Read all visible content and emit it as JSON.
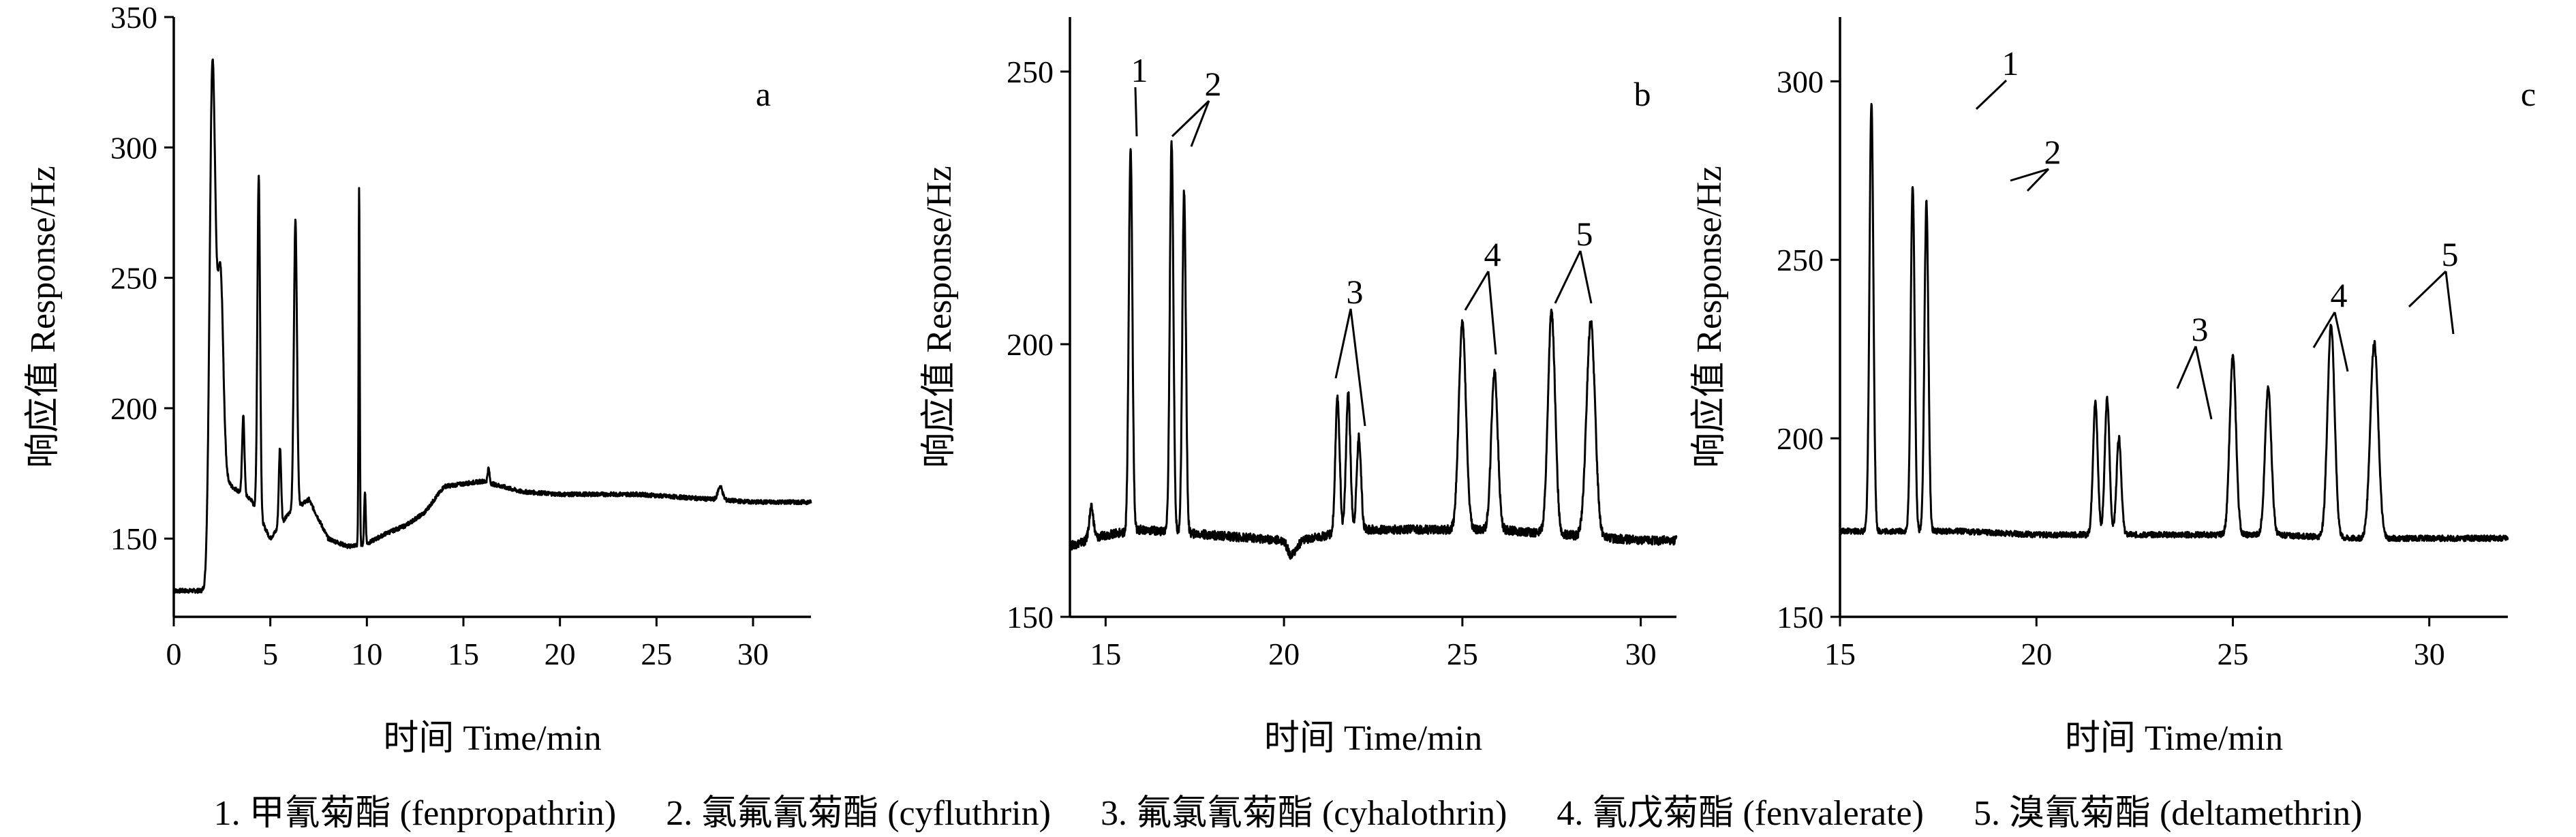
{
  "chart_data": [
    {
      "type": "line",
      "panel": "a",
      "xlabel": "时间 Time/min",
      "ylabel": "响应值  Response/Hz",
      "xlim": [
        0,
        33
      ],
      "ylim": [
        120,
        350
      ],
      "xticks": [
        0,
        5,
        10,
        15,
        20,
        25,
        30
      ],
      "yticks": [
        150,
        200,
        250,
        300,
        350
      ],
      "baseline": [
        [
          0,
          130
        ],
        [
          1.5,
          130
        ],
        [
          1.8,
          127
        ],
        [
          2.5,
          175
        ],
        [
          3,
          170
        ],
        [
          4,
          165
        ],
        [
          5,
          150
        ],
        [
          6,
          160
        ],
        [
          7,
          165
        ],
        [
          8,
          150
        ],
        [
          9,
          147
        ],
        [
          10,
          148
        ],
        [
          11,
          152
        ],
        [
          12,
          155
        ],
        [
          13,
          160
        ],
        [
          14,
          170
        ],
        [
          15,
          171
        ],
        [
          16,
          172
        ],
        [
          18,
          168
        ],
        [
          20,
          167
        ],
        [
          22,
          167
        ],
        [
          24,
          167
        ],
        [
          26,
          166
        ],
        [
          28,
          165
        ],
        [
          30,
          164
        ],
        [
          33,
          164
        ]
      ],
      "peaks": [
        {
          "x": 2.0,
          "y": 331,
          "w": 0.15
        },
        {
          "x": 2.4,
          "y": 250,
          "w": 0.15
        },
        {
          "x": 3.6,
          "y": 197,
          "w": 0.06
        },
        {
          "x": 4.4,
          "y": 289,
          "w": 0.07
        },
        {
          "x": 5.5,
          "y": 185,
          "w": 0.06
        },
        {
          "x": 6.3,
          "y": 272,
          "w": 0.08
        },
        {
          "x": 9.6,
          "y": 285,
          "w": 0.03
        },
        {
          "x": 9.9,
          "y": 168,
          "w": 0.04
        },
        {
          "x": 16.3,
          "y": 177,
          "w": 0.05
        },
        {
          "x": 28.3,
          "y": 170,
          "w": 0.12
        }
      ],
      "peak_labels": []
    },
    {
      "type": "line",
      "panel": "b",
      "xlabel": "时间 Time/min",
      "ylabel": "响应值  Response/Hz",
      "xlim": [
        14,
        31
      ],
      "ylim": [
        150,
        260
      ],
      "xticks": [
        15,
        20,
        25,
        30
      ],
      "yticks": [
        150,
        200,
        250
      ],
      "baseline": [
        [
          14,
          163
        ],
        [
          15,
          165
        ],
        [
          16,
          166
        ],
        [
          18,
          165
        ],
        [
          20,
          164
        ],
        [
          20.2,
          161
        ],
        [
          20.5,
          164
        ],
        [
          22,
          166
        ],
        [
          24,
          166
        ],
        [
          26,
          166
        ],
        [
          28,
          165
        ],
        [
          30,
          164
        ],
        [
          31,
          164
        ]
      ],
      "peaks": [
        {
          "x": 14.6,
          "y": 170,
          "w": 0.06
        },
        {
          "x": 15.7,
          "y": 236,
          "w": 0.05
        },
        {
          "x": 16.85,
          "y": 237,
          "w": 0.05
        },
        {
          "x": 17.2,
          "y": 228,
          "w": 0.05
        },
        {
          "x": 21.5,
          "y": 190,
          "w": 0.06
        },
        {
          "x": 21.8,
          "y": 191,
          "w": 0.06
        },
        {
          "x": 22.1,
          "y": 183,
          "w": 0.06
        },
        {
          "x": 25.0,
          "y": 204,
          "w": 0.1
        },
        {
          "x": 25.9,
          "y": 195,
          "w": 0.09
        },
        {
          "x": 27.5,
          "y": 206,
          "w": 0.1
        },
        {
          "x": 28.6,
          "y": 204,
          "w": 0.12
        }
      ],
      "peak_labels": [
        "1",
        "2",
        "3",
        "4",
        "5"
      ]
    },
    {
      "type": "line",
      "panel": "c",
      "xlabel": "时间 Time/min",
      "ylabel": "响应值  Response/Hz",
      "xlim": [
        15,
        32
      ],
      "ylim": [
        150,
        318
      ],
      "xticks": [
        15,
        20,
        25,
        30
      ],
      "yticks": [
        150,
        200,
        250,
        300
      ],
      "baseline": [
        [
          15,
          174
        ],
        [
          16,
          174
        ],
        [
          18,
          174
        ],
        [
          20,
          173
        ],
        [
          22,
          173
        ],
        [
          24,
          173
        ],
        [
          26,
          173
        ],
        [
          28,
          172
        ],
        [
          30,
          172
        ],
        [
          32,
          172
        ]
      ],
      "peaks": [
        {
          "x": 15.8,
          "y": 294,
          "w": 0.05
        },
        {
          "x": 16.85,
          "y": 271,
          "w": 0.05
        },
        {
          "x": 17.2,
          "y": 266,
          "w": 0.05
        },
        {
          "x": 21.5,
          "y": 210,
          "w": 0.06
        },
        {
          "x": 21.8,
          "y": 211,
          "w": 0.06
        },
        {
          "x": 22.1,
          "y": 200,
          "w": 0.06
        },
        {
          "x": 25.0,
          "y": 223,
          "w": 0.08
        },
        {
          "x": 25.9,
          "y": 214,
          "w": 0.08
        },
        {
          "x": 27.5,
          "y": 232,
          "w": 0.09
        },
        {
          "x": 28.6,
          "y": 227,
          "w": 0.1
        }
      ],
      "peak_labels": [
        "1",
        "2",
        "3",
        "4",
        "5"
      ]
    }
  ],
  "legend": [
    "1. 甲氰菊酯 (fenpropathrin)",
    "2. 氯氟氰菊酯 (cyfluthrin)",
    "3. 氟氯氰菊酯 (cyhalothrin)",
    "4. 氰戊菊酯 (fenvalerate)",
    "5. 溴氰菊酯 (deltamethrin)"
  ]
}
